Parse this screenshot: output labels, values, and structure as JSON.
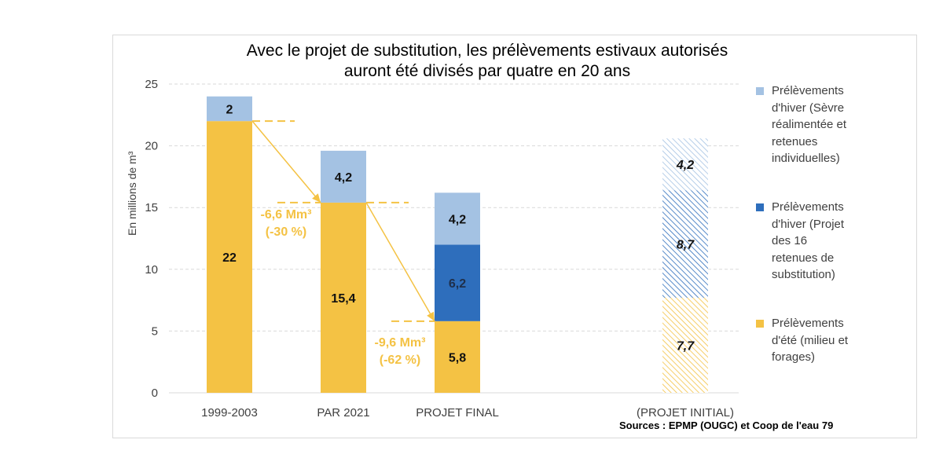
{
  "chart_data": {
    "type": "bar",
    "stacked": true,
    "title_lines": [
      "Avec le projet de substitution, les prélèvements estivaux autorisés",
      "auront été divisés par quatre en 20 ans"
    ],
    "ylabel": "En millions de m³",
    "ylim": [
      0,
      25
    ],
    "yticks": [
      "0",
      "5",
      "10",
      "15",
      "20",
      "25"
    ],
    "grid": true,
    "categories": [
      "1999-2003",
      "PAR 2021",
      "PROJET FINAL",
      "(PROJET INITIAL)"
    ],
    "series": [
      {
        "name": "Prélèvements d'été (milieu et forages)",
        "legend_lines": [
          "Prélèvements",
          "d'été (milieu et",
          "forages)"
        ],
        "color": "#f4c244",
        "values": [
          22,
          15.4,
          5.8,
          7.7
        ],
        "labels": [
          "22",
          "15,4",
          "5,8",
          "7,7"
        ]
      },
      {
        "name": "Prélèvements d'hiver (Projet des 16 retenues de substitution)",
        "legend_lines": [
          "Prélèvements",
          "d'hiver (Projet",
          "des 16",
          "retenues de",
          "substitution)"
        ],
        "color": "#2e6ebc",
        "values": [
          0,
          0,
          6.2,
          8.7
        ],
        "labels": [
          "",
          "",
          "6,2",
          "8,7"
        ]
      },
      {
        "name": "Prélèvements d'hiver (Sèvre réalimentée et retenues individuelles)",
        "legend_lines": [
          "Prélèvements",
          "d'hiver (Sèvre",
          "réalimentée et",
          "retenues",
          "individuelles)"
        ],
        "color": "#a4c2e3",
        "values": [
          2,
          4.2,
          4.2,
          4.2
        ],
        "labels": [
          "2",
          "4,2",
          "4,2",
          "4,2"
        ]
      }
    ],
    "hatched_category": "(PROJET INITIAL)",
    "annotations": [
      {
        "lines": [
          "-6,6 Mm³",
          "(-30 %)"
        ],
        "color": "#f4c244"
      },
      {
        "lines": [
          "-9,6 Mm³",
          "(-62 %)"
        ],
        "color": "#f4c244"
      }
    ],
    "source": "Sources : EPMP (OUGC) et Coop de l'eau 79"
  }
}
